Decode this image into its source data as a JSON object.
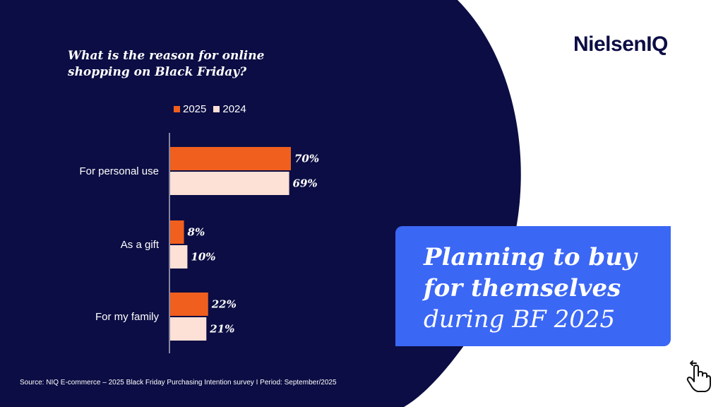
{
  "brand": "NielsenIQ",
  "colors": {
    "navy": "#0c0d44",
    "series_2025": "#f05f1e",
    "series_2024": "#fde0d6",
    "callout": "#3b67f5"
  },
  "chart_data": {
    "type": "bar",
    "orientation": "horizontal",
    "title": "What is the reason for online shopping on Black Friday?",
    "categories": [
      "For personal use",
      "As a gift",
      "For my family"
    ],
    "series": [
      {
        "name": "2025",
        "values": [
          70,
          8,
          22
        ],
        "labels": [
          "70%",
          "8%",
          "22%"
        ]
      },
      {
        "name": "2024",
        "values": [
          69,
          10,
          21
        ],
        "labels": [
          "69%",
          "10%",
          "21%"
        ]
      }
    ],
    "xlim": [
      0,
      70
    ],
    "grid": false,
    "legend": "top"
  },
  "callout": {
    "line1": "Planning to buy",
    "line2": "for themselves",
    "line3": "during BF 2025"
  },
  "source": "Source: NIQ E-commerce – 2025 Black Friday Purchasing Intention survey I Period: September/2025",
  "icons": {
    "nav": "pointing-hand-icon"
  }
}
